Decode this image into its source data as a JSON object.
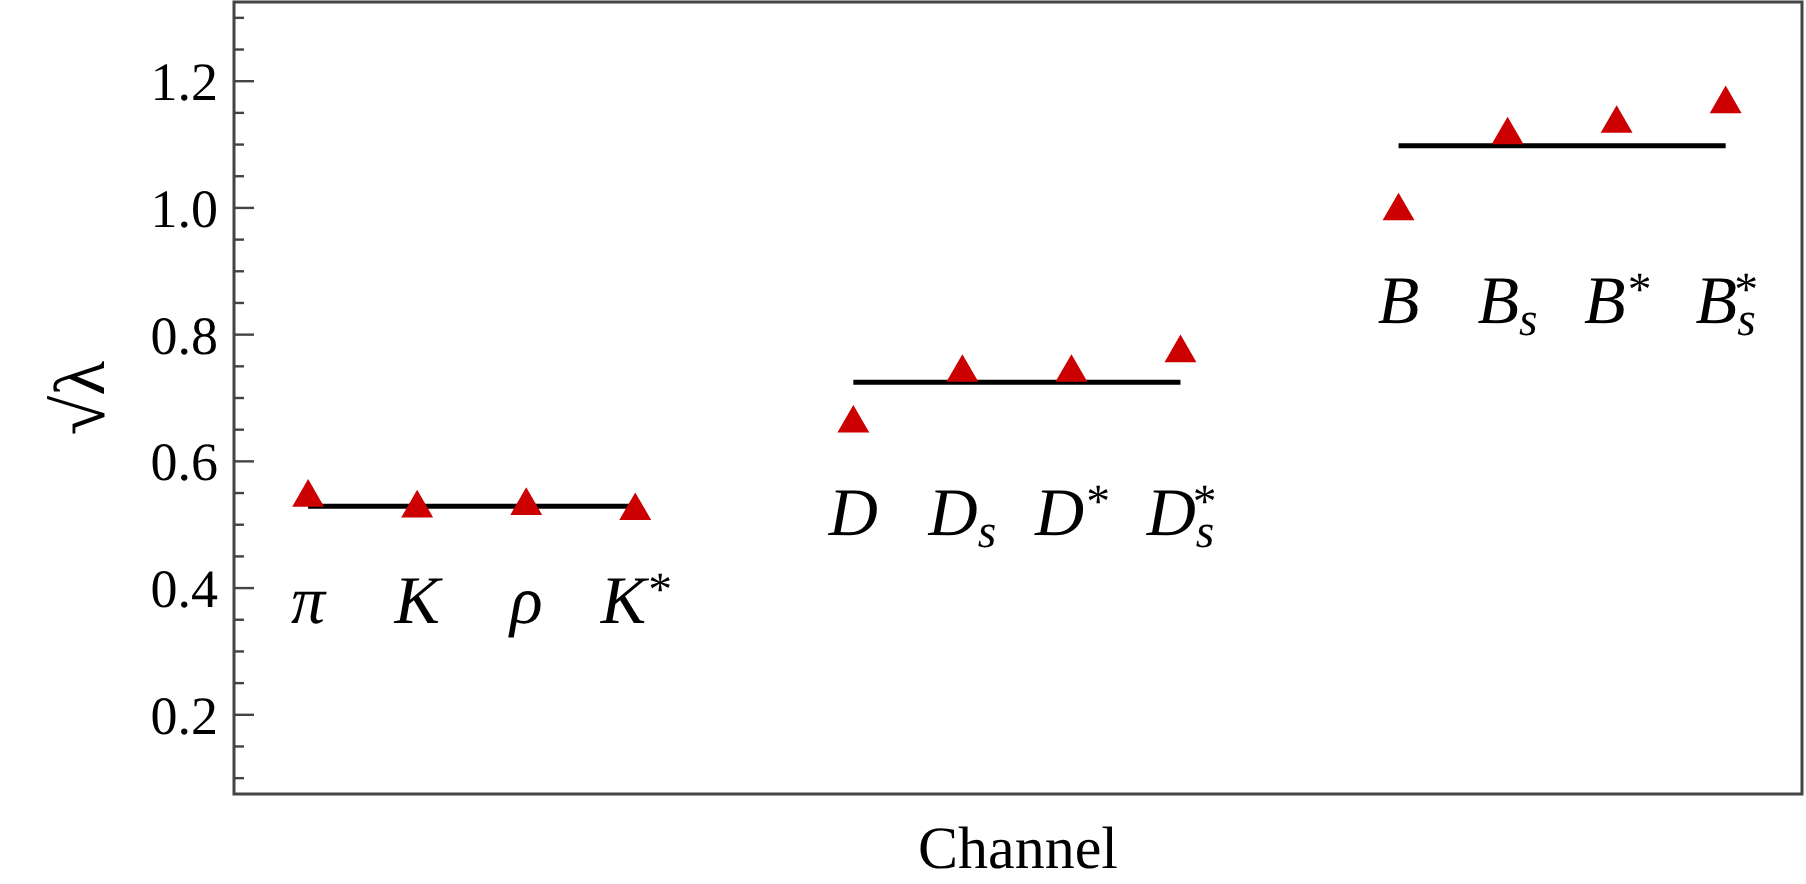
{
  "chart_data": {
    "type": "scatter",
    "xlabel": "Channel",
    "ylabel": "√λ",
    "categories": [
      "π",
      "K",
      "ρ",
      "K$^{*}$",
      null,
      "D",
      "D$_{s}$",
      "D$^{*}$",
      "D$_{s}$$^{*}$",
      null,
      "B",
      "B$_{s}$",
      "B$^{*}$",
      "B$_{s}$$^{*}$"
    ],
    "ylim": [
      0.075,
      1.325
    ],
    "yticks": [
      {
        "value": 0.1,
        "label": null
      },
      {
        "value": 0.15,
        "label": null
      },
      0.2,
      {
        "value": 0.25,
        "label": null
      },
      {
        "value": 0.3,
        "label": null
      },
      {
        "value": 0.35,
        "label": null
      },
      0.4,
      {
        "value": 0.45,
        "label": null
      },
      {
        "value": 0.5,
        "label": null
      },
      {
        "value": 0.55,
        "label": null
      },
      0.6,
      {
        "value": 0.65,
        "label": null
      },
      {
        "value": 0.7,
        "label": null
      },
      {
        "value": 0.75,
        "label": null
      },
      0.8,
      {
        "value": 0.85,
        "label": null
      },
      {
        "value": 0.9,
        "label": null
      },
      {
        "value": 0.95,
        "label": null
      },
      {
        "value": 1,
        "label": "1.0"
      },
      {
        "value": 1.05,
        "label": null
      },
      {
        "value": 1.1,
        "label": null
      },
      {
        "value": 1.15,
        "label": null
      },
      1.2,
      {
        "value": 1.25,
        "label": null
      },
      {
        "value": 1.3,
        "label": null
      }
    ],
    "series": [
      {
        "color": "#cc0000",
        "marker": "triangle",
        "values": [
          0.543,
          0.526,
          0.53,
          0.522,
          null,
          0.66,
          0.74,
          0.74,
          0.771,
          null,
          0.995,
          1.115,
          1.133,
          1.164
        ]
      },
      {
        "type": "line",
        "color": "#000000",
        "marker": "none",
        "line_style": "solid",
        "values": [
          0.529,
          0.529,
          0.529,
          0.529,
          null,
          null,
          null,
          null,
          null,
          null,
          null,
          null,
          null,
          null
        ]
      },
      {
        "type": "line",
        "color": "#000000",
        "marker": "none",
        "line_style": "solid",
        "values": [
          null,
          null,
          null,
          null,
          null,
          0.725,
          0.725,
          0.725,
          0.725,
          null,
          null,
          null,
          null,
          null
        ]
      },
      {
        "type": "line",
        "color": "#000000",
        "marker": "none",
        "line_style": "solid",
        "values": [
          null,
          null,
          null,
          null,
          null,
          null,
          null,
          null,
          null,
          null,
          1.098,
          1.098,
          1.098,
          1.098
        ]
      }
    ]
  }
}
